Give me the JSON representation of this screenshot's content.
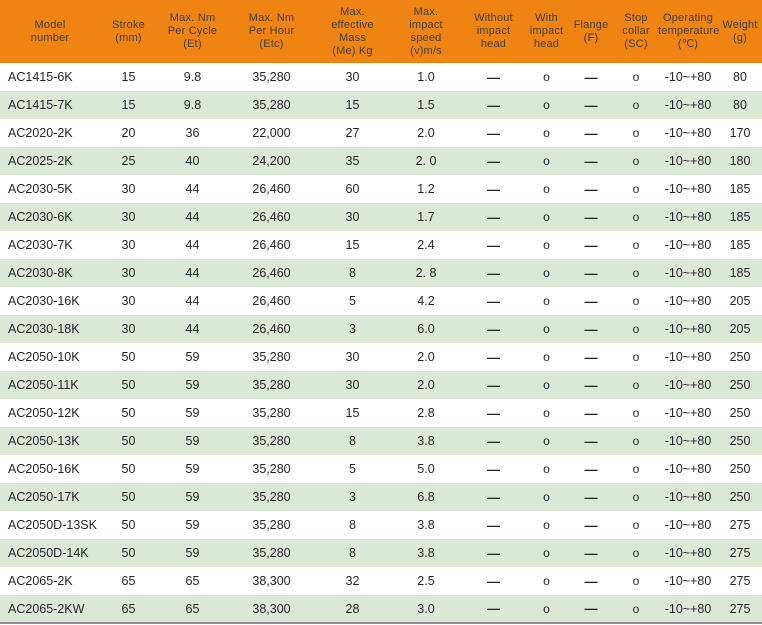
{
  "table": {
    "title_hint": "Product specification table",
    "colors": {
      "header_bg": "#ef8412",
      "header_text": "#404040",
      "row_alt_bg": "#d9e9d6",
      "body_text": "#262626",
      "bottom_border": "#8f8f8f"
    },
    "symbols": {
      "not_available": "—",
      "available": "o"
    },
    "columns": [
      "Model\nnumber",
      "Stroke\n(mm)",
      "Max. Nm\nPer Cycle\n(Et)",
      "Max. Nm\nPer Hour\n(Etc)",
      "Max.\neffective\nMass\n(Me) Kg",
      "Max.\nimpact\nspeed\n(v)m/s",
      "Without\nimpact\nhead",
      "With\nimpact\nhead",
      "Flange\n(F)",
      "Stop\ncollar\n(SC)",
      "Operating\ntemperature\n(℃)",
      "Weight\n(g)"
    ],
    "rows": [
      [
        "AC1415-6K",
        "15",
        "9.8",
        "35,280",
        "30",
        "1.0",
        "—",
        "o",
        "—",
        "o",
        "-10~+80",
        "80"
      ],
      [
        "AC1415-7K",
        "15",
        "9.8",
        "35,280",
        "15",
        "1.5",
        "—",
        "o",
        "—",
        "o",
        "-10~+80",
        "80"
      ],
      [
        "AC2020-2K",
        "20",
        "36",
        "22,000",
        "27",
        "2.0",
        "—",
        "o",
        "—",
        "o",
        "-10~+80",
        "170"
      ],
      [
        "AC2025-2K",
        "25",
        "40",
        "24,200",
        "35",
        "2. 0",
        "—",
        "o",
        "—",
        "o",
        "-10~+80",
        "180"
      ],
      [
        "AC2030-5K",
        "30",
        "44",
        "26,460",
        "60",
        "1.2",
        "—",
        "o",
        "—",
        "o",
        "-10~+80",
        "185"
      ],
      [
        "AC2030-6K",
        "30",
        "44",
        "26,460",
        "30",
        "1.7",
        "—",
        "o",
        "—",
        "o",
        "-10~+80",
        "185"
      ],
      [
        "AC2030-7K",
        "30",
        "44",
        "26,460",
        "15",
        "2.4",
        "—",
        "o",
        "—",
        "o",
        "-10~+80",
        "185"
      ],
      [
        "AC2030-8K",
        "30",
        "44",
        "26,460",
        "8",
        "2. 8",
        "—",
        "o",
        "—",
        "o",
        "-10~+80",
        "185"
      ],
      [
        "AC2030-16K",
        "30",
        "44",
        "26,460",
        "5",
        "4.2",
        "—",
        "o",
        "—",
        "o",
        "-10~+80",
        "205"
      ],
      [
        "AC2030-18K",
        "30",
        "44",
        "26,460",
        "3",
        "6.0",
        "—",
        "o",
        "—",
        "o",
        "-10~+80",
        "205"
      ],
      [
        "AC2050-10K",
        "50",
        "59",
        "35,280",
        "30",
        "2.0",
        "—",
        "o",
        "—",
        "o",
        "-10~+80",
        "250"
      ],
      [
        "AC2050-11K",
        "50",
        "59",
        "35,280",
        "30",
        "2.0",
        "—",
        "o",
        "—",
        "o",
        "-10~+80",
        "250"
      ],
      [
        "AC2050-12K",
        "50",
        "59",
        "35,280",
        "15",
        "2.8",
        "—",
        "o",
        "—",
        "o",
        "-10~+80",
        "250"
      ],
      [
        "AC2050-13K",
        "50",
        "59",
        "35,280",
        "8",
        "3.8",
        "—",
        "o",
        "—",
        "o",
        "-10~+80",
        "250"
      ],
      [
        "AC2050-16K",
        "50",
        "59",
        "35,280",
        "5",
        "5.0",
        "—",
        "o",
        "—",
        "o",
        "-10~+80",
        "250"
      ],
      [
        "AC2050-17K",
        "50",
        "59",
        "35,280",
        "3",
        "6.8",
        "—",
        "o",
        "—",
        "o",
        "-10~+80",
        "250"
      ],
      [
        "AC2050D-13SK",
        "50",
        "59",
        "35,280",
        "8",
        "3.8",
        "—",
        "o",
        "—",
        "o",
        "-10~+80",
        "275"
      ],
      [
        "AC2050D-14K",
        "50",
        "59",
        "35,280",
        "8",
        "3.8",
        "—",
        "o",
        "—",
        "o",
        "-10~+80",
        "275"
      ],
      [
        "AC2065-2K",
        "65",
        "65",
        "38,300",
        "32",
        "2.5",
        "—",
        "o",
        "—",
        "o",
        "-10~+80",
        "275"
      ],
      [
        "AC2065-2KW",
        "65",
        "65",
        "38,300",
        "28",
        "3.0",
        "—",
        "o",
        "—",
        "o",
        "-10~+80",
        "275"
      ]
    ]
  }
}
